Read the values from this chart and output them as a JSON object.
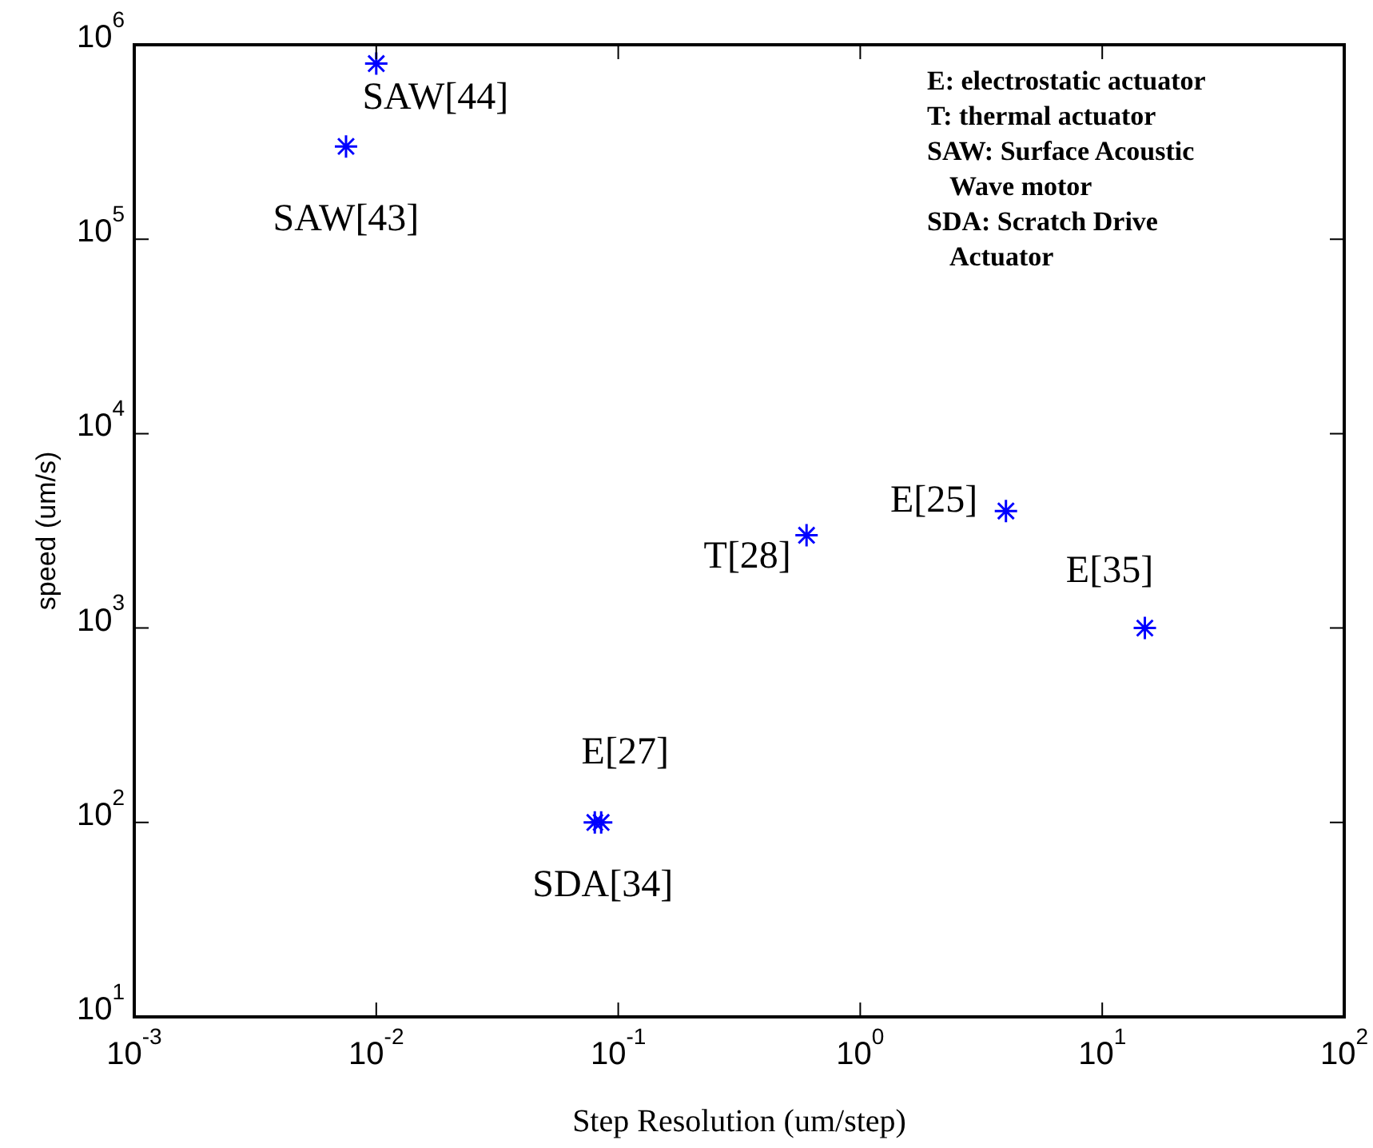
{
  "chart_data": {
    "type": "scatter",
    "xlabel": "Step Resolution (um/step)",
    "ylabel": "speed (um/s)",
    "log": "xy",
    "grid": false,
    "legend": false,
    "marker": "cross",
    "xlim": [
      0.001,
      100
    ],
    "ylim": [
      10,
      1000000
    ],
    "xticks": [
      {
        "value": 0.001,
        "label": "10$^{-3}$"
      },
      {
        "value": 0.01,
        "label": "10$^{-2}$"
      },
      {
        "value": 0.1,
        "label": "10$^{-1}$"
      },
      {
        "value": 1,
        "label": "10$^{0}$"
      },
      {
        "value": 10,
        "label": "10$^{1}$"
      },
      {
        "value": 100,
        "label": "10$^{2}$"
      }
    ],
    "yticks": [
      {
        "value": 10,
        "label": "10$^{1}$"
      },
      {
        "value": 100,
        "label": "10$^{2}$"
      },
      {
        "value": 1000,
        "label": "10$^{3}$"
      },
      {
        "value": 10000,
        "label": "10$^{4}$"
      },
      {
        "value": 100000,
        "label": "10$^{5}$"
      },
      {
        "value": 1000000,
        "label": "10$^{6}$"
      }
    ],
    "series": [
      {
        "color": "#0000ff",
        "x": [
          0.01,
          0.0075,
          0.6,
          4,
          15,
          0.08,
          0.085
        ],
        "values": [
          800000,
          300000,
          3000,
          4000,
          1000,
          100,
          100
        ]
      }
    ],
    "annotations": [
      {
        "text": "SAW[44]",
        "x": 0.01,
        "y": 800000
      },
      {
        "text": "SAW[43]",
        "x": 0.0075,
        "y": 300000
      },
      {
        "text": "T[28]",
        "x": 0.6,
        "y": 3000
      },
      {
        "text": "E[25]",
        "x": 4,
        "y": 4000
      },
      {
        "text": "E[35]",
        "x": 15,
        "y": 1000
      },
      {
        "text": "E[27]",
        "x": 0.085,
        "y": 100
      },
      {
        "text": "SDA[34]",
        "x": 0.08,
        "y": 100
      },
      "E: electrostatic actuator",
      "T: thermal actuator",
      "SAW: Surface Acoustic Wave motor",
      "SDA: Scratch Drive Actuator"
    ]
  }
}
